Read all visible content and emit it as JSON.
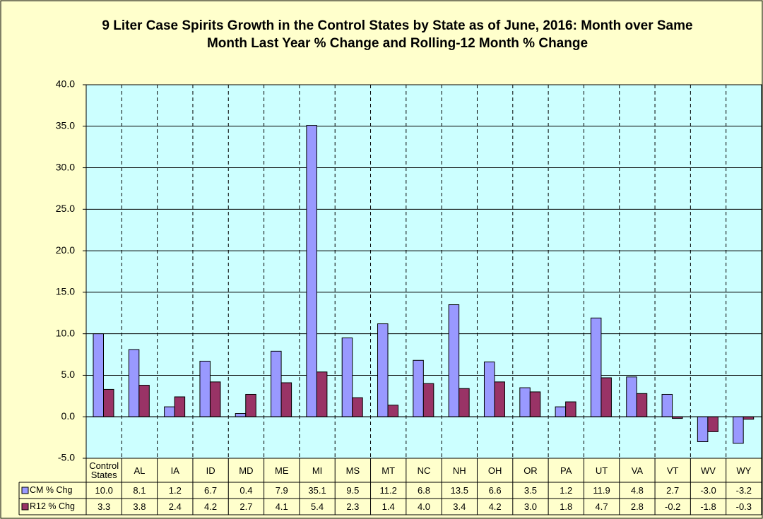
{
  "chart_data": {
    "type": "bar",
    "title": "9 Liter Case Spirits Growth in the Control States by State as of June, 2016: Month over Same Month Last Year % Change and Rolling-12 Month % Change",
    "categories": [
      "Control States",
      "AL",
      "IA",
      "ID",
      "MD",
      "ME",
      "MI",
      "MS",
      "MT",
      "NC",
      "NH",
      "OH",
      "OR",
      "PA",
      "UT",
      "VA",
      "VT",
      "WV",
      "WY"
    ],
    "series": [
      {
        "name": "CM % Chg",
        "color": "#9999ff",
        "values": [
          10.0,
          8.1,
          1.2,
          6.7,
          0.4,
          7.9,
          35.1,
          9.5,
          11.2,
          6.8,
          13.5,
          6.6,
          3.5,
          1.2,
          11.9,
          4.8,
          2.7,
          -3.0,
          -3.2
        ],
        "value_labels": [
          "10.0",
          "8.1",
          "1.2",
          "6.7",
          "0.4",
          "7.9",
          "35.1",
          "9.5",
          "11.2",
          "6.8",
          "13.5",
          "6.6",
          "3.5",
          "1.2",
          "11.9",
          "4.8",
          "2.7",
          "-3.0",
          "-3.2"
        ]
      },
      {
        "name": "R12 % Chg",
        "color": "#993366",
        "values": [
          3.3,
          3.8,
          2.4,
          4.2,
          2.7,
          4.1,
          5.4,
          2.3,
          1.4,
          4.0,
          3.4,
          4.2,
          3.0,
          1.8,
          4.7,
          2.8,
          -0.2,
          -1.8,
          -0.3
        ],
        "value_labels": [
          "3.3",
          "3.8",
          "2.4",
          "4.2",
          "2.7",
          "4.1",
          "5.4",
          "2.3",
          "1.4",
          "4.0",
          "3.4",
          "4.2",
          "3.0",
          "1.8",
          "4.7",
          "2.8",
          "-0.2",
          "-1.8",
          "-0.3"
        ]
      }
    ],
    "ylim": [
      -5,
      40
    ],
    "yticks": [
      {
        "value": -5,
        "label": "-5.0"
      },
      {
        "value": 0,
        "label": "0.0"
      },
      {
        "value": 5,
        "label": "5.0"
      },
      {
        "value": 10,
        "label": "10.0"
      },
      {
        "value": 15,
        "label": "15.0"
      },
      {
        "value": 20,
        "label": "20.0"
      },
      {
        "value": 25,
        "label": "25.0"
      },
      {
        "value": 30,
        "label": "30.0"
      },
      {
        "value": 35,
        "label": "35.0"
      },
      {
        "value": 40,
        "label": "40.0"
      }
    ],
    "grid": true,
    "background": "#ccffff"
  }
}
